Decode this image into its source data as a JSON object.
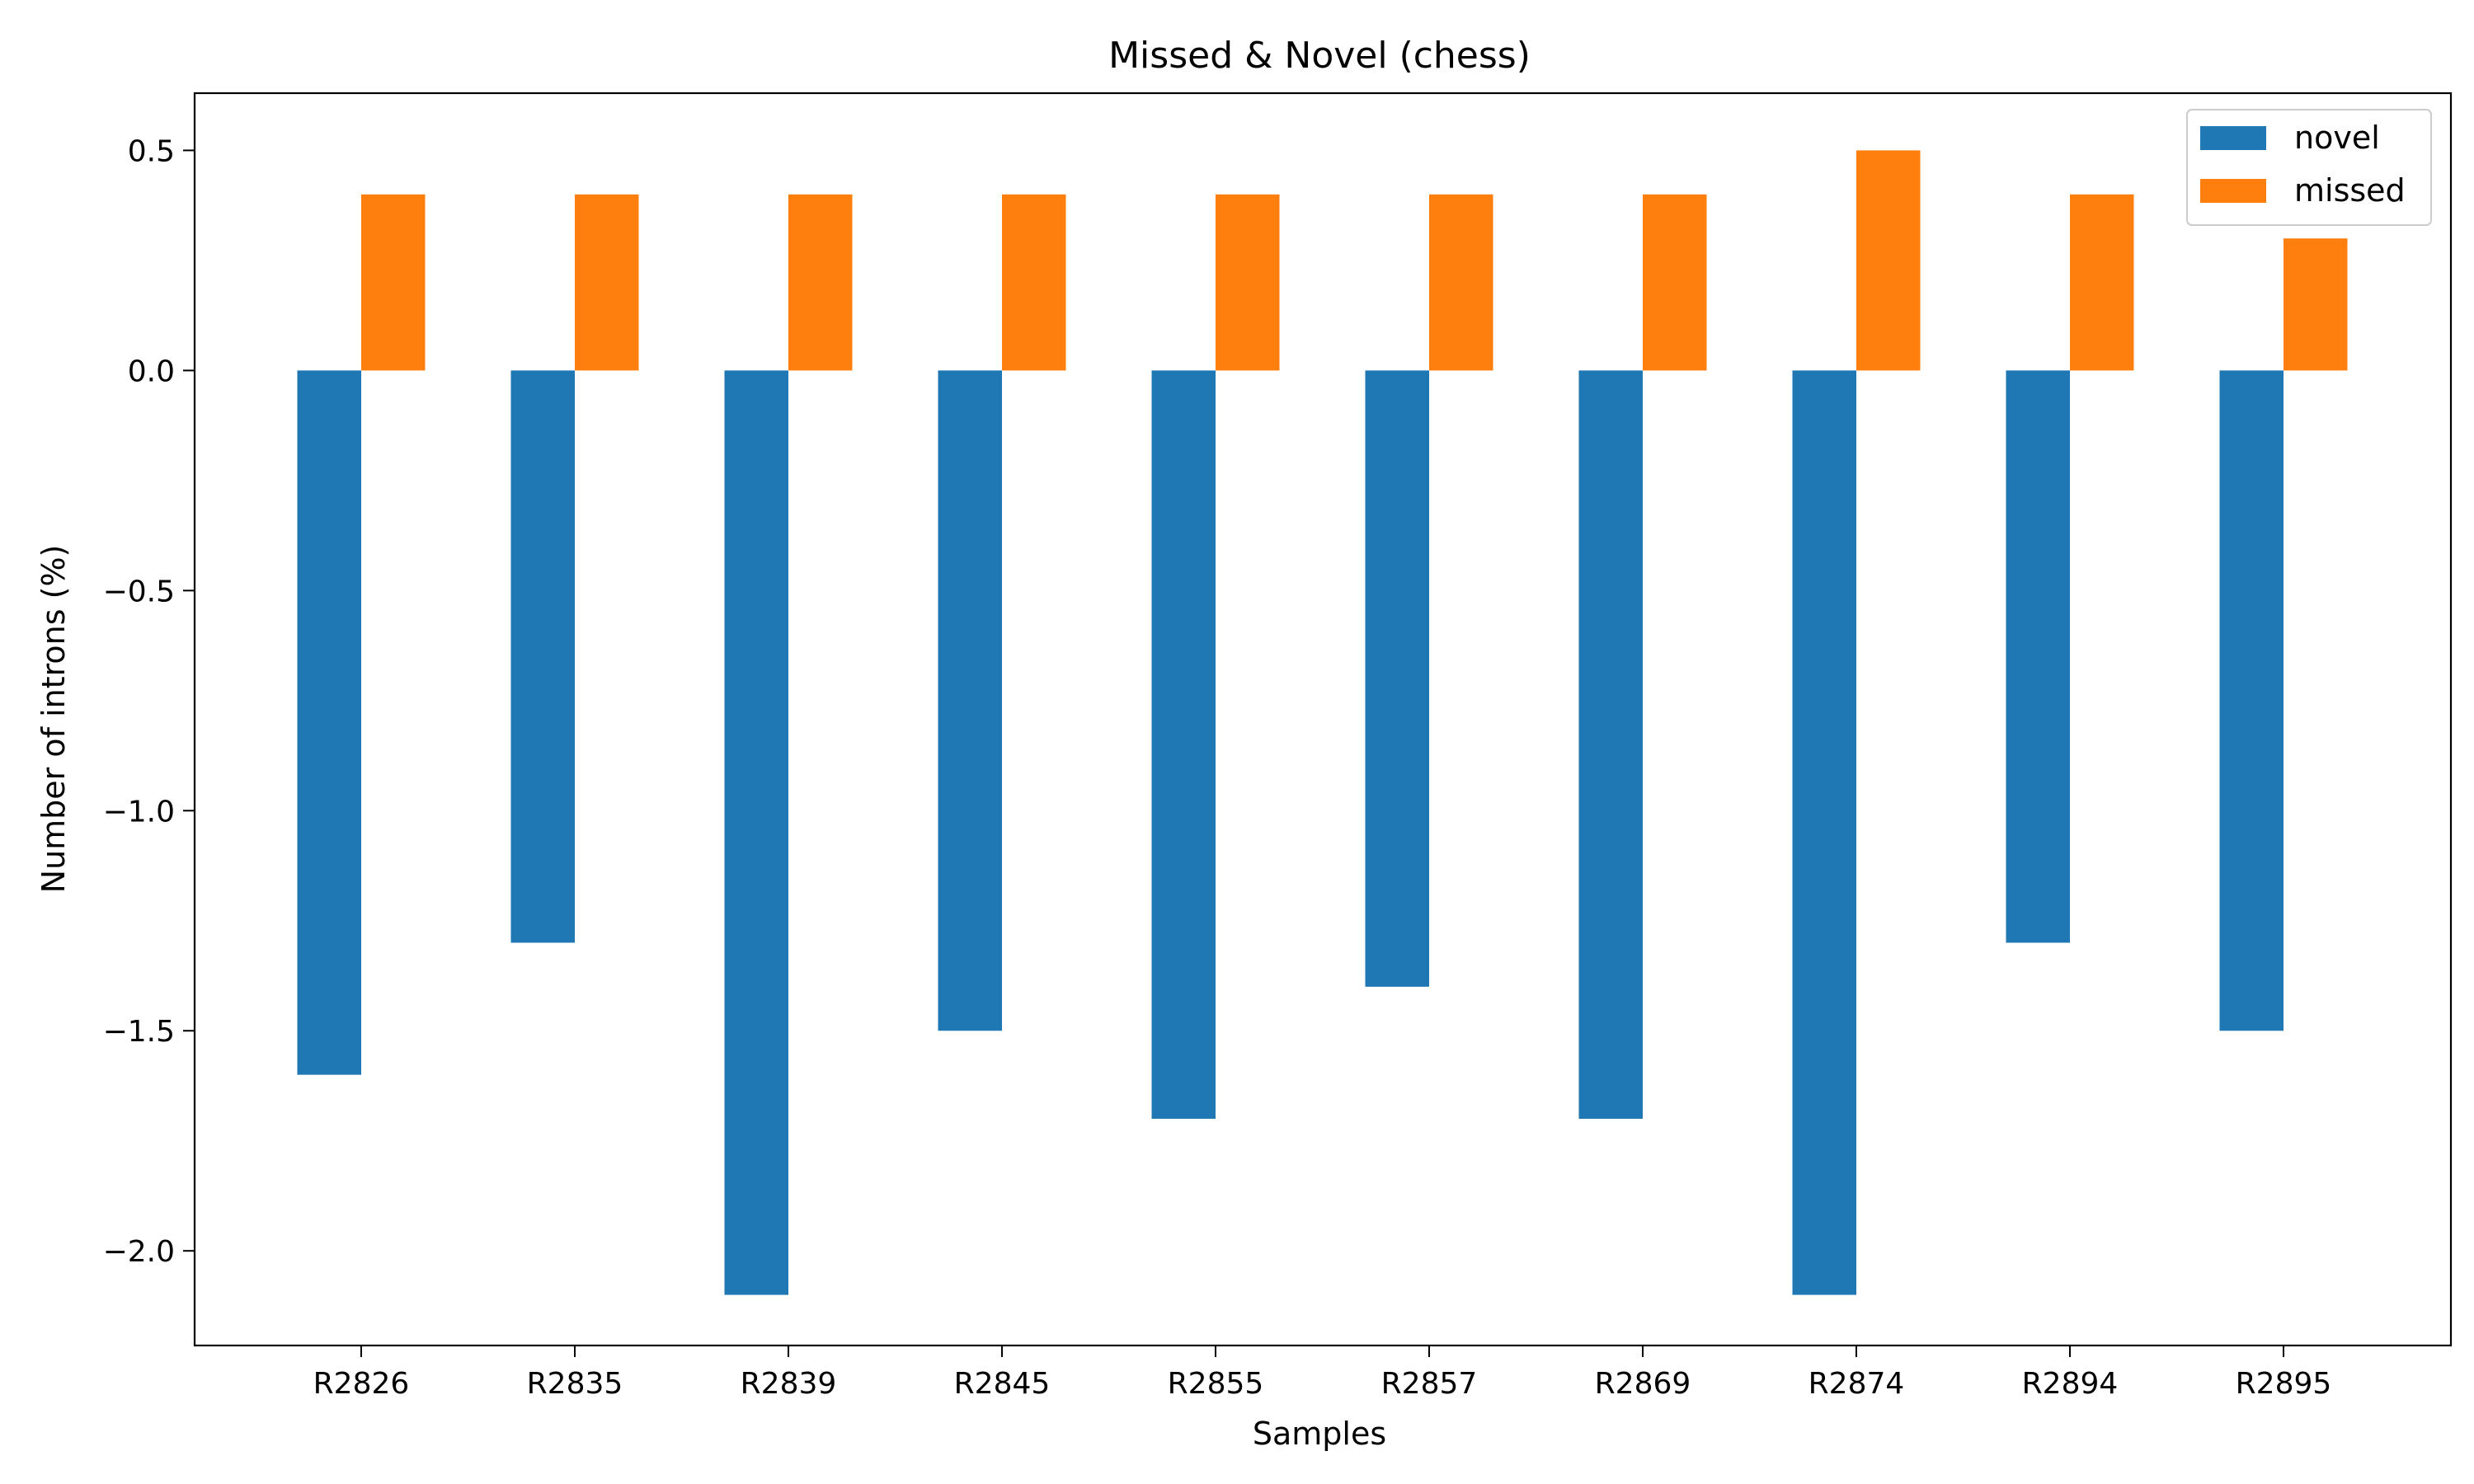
{
  "chart_data": {
    "type": "bar",
    "title": "Missed & Novel (chess)",
    "xlabel": "Samples",
    "ylabel": "Number of introns (%)",
    "categories": [
      "R2826",
      "R2835",
      "R2839",
      "R2845",
      "R2855",
      "R2857",
      "R2869",
      "R2874",
      "R2894",
      "R2895"
    ],
    "series": [
      {
        "name": "novel",
        "color": "#1f77b4",
        "values": [
          -1.6,
          -1.3,
          -2.1,
          -1.5,
          -1.7,
          -1.4,
          -1.7,
          -2.1,
          -1.3,
          -1.5
        ]
      },
      {
        "name": "missed",
        "color": "#ff7f0e",
        "values": [
          0.4,
          0.4,
          0.4,
          0.4,
          0.4,
          0.4,
          0.4,
          0.5,
          0.4,
          0.3
        ]
      }
    ],
    "ylim": [
      -2.215,
      0.63
    ],
    "yticks": [
      0.5,
      0.0,
      -0.5,
      -1.0,
      -1.5,
      -2.0
    ],
    "ytick_labels": [
      "0.5",
      "0.0",
      "−0.5",
      "−1.0",
      "−1.5",
      "−2.0"
    ],
    "grid": false,
    "legend_position": "top-right"
  }
}
